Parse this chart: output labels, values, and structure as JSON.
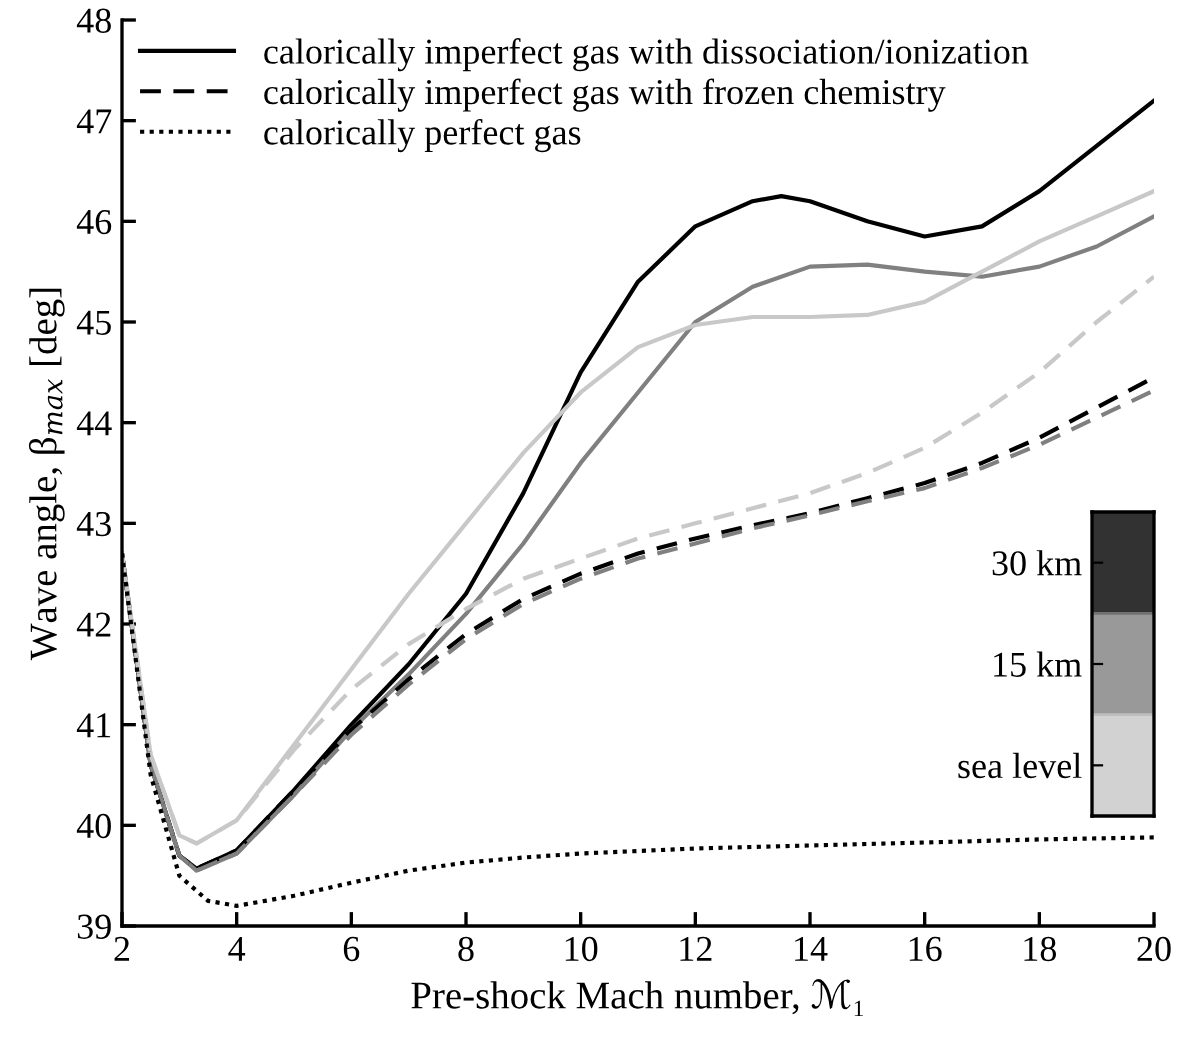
{
  "chart_data": {
    "type": "line",
    "xlabel": "Pre-shock Mach number, ℳ₁",
    "ylabel": "Wave angle, β$_{max}$ [deg]",
    "xlim": [
      2,
      20
    ],
    "ylim": [
      39,
      48
    ],
    "xticks": [
      2,
      4,
      6,
      8,
      10,
      12,
      14,
      16,
      18,
      20
    ],
    "yticks": [
      39,
      40,
      41,
      42,
      43,
      44,
      45,
      46,
      47,
      48
    ],
    "grid": false,
    "legend": "top left",
    "marker": "none",
    "annotations": [
      "30 km",
      "15 km",
      "sea level"
    ],
    "series": [
      {
        "name": "calorically imperfect gas with dissociation/ionization",
        "color": "#000000",
        "line_style": "solid",
        "x": [
          2,
          2.5,
          3,
          3.3,
          4,
          5,
          6,
          7,
          8,
          9,
          10,
          11,
          12,
          13,
          13.5,
          14,
          15,
          16,
          17,
          18,
          19,
          20
        ],
        "values": [
          42.7,
          40.6,
          39.7,
          39.57,
          39.75,
          40.35,
          41.0,
          41.6,
          42.3,
          43.3,
          44.5,
          45.4,
          45.95,
          46.2,
          46.25,
          46.2,
          46.0,
          45.85,
          45.95,
          46.3,
          46.75,
          47.2
        ]
      },
      {
        "color": "#808080",
        "line_style": "solid",
        "x": [
          2,
          2.5,
          3,
          3.3,
          4,
          5,
          6,
          7,
          8,
          9,
          10,
          11,
          12,
          13,
          14,
          15,
          16,
          17,
          18,
          19,
          20
        ],
        "values": [
          42.7,
          40.6,
          39.7,
          39.55,
          39.72,
          40.3,
          40.95,
          41.5,
          42.1,
          42.8,
          43.6,
          44.3,
          45.0,
          45.35,
          45.55,
          45.57,
          45.5,
          45.45,
          45.55,
          45.75,
          46.05
        ]
      },
      {
        "color": "#c8c8c8",
        "line_style": "solid",
        "x": [
          2,
          2.5,
          3,
          3.3,
          4,
          5,
          6,
          7,
          8,
          9,
          10,
          11,
          12,
          13,
          14,
          15,
          16,
          17,
          18,
          19,
          20
        ],
        "values": [
          42.7,
          40.7,
          39.9,
          39.82,
          40.05,
          40.8,
          41.55,
          42.3,
          43.0,
          43.7,
          44.3,
          44.75,
          44.97,
          45.05,
          45.05,
          45.07,
          45.2,
          45.5,
          45.8,
          46.05,
          46.3
        ]
      },
      {
        "name": "calorically imperfect gas with frozen chemistry",
        "color": "#000000",
        "line_style": "dashed",
        "x": [
          2,
          2.5,
          3,
          3.3,
          4,
          5,
          6,
          7,
          8,
          9,
          10,
          11,
          12,
          13,
          14,
          15,
          16,
          17,
          18,
          19,
          20
        ],
        "values": [
          42.7,
          40.6,
          39.7,
          39.57,
          39.75,
          40.35,
          40.95,
          41.45,
          41.9,
          42.25,
          42.5,
          42.7,
          42.85,
          42.98,
          43.1,
          43.25,
          43.4,
          43.6,
          43.85,
          44.15,
          44.45
        ]
      },
      {
        "color": "#808080",
        "line_style": "dashed",
        "x": [
          2,
          2.5,
          3,
          3.3,
          4,
          5,
          6,
          7,
          8,
          9,
          10,
          11,
          12,
          13,
          14,
          15,
          16,
          17,
          18,
          19,
          20
        ],
        "values": [
          42.7,
          40.6,
          39.7,
          39.55,
          39.72,
          40.3,
          40.9,
          41.4,
          41.85,
          42.2,
          42.45,
          42.65,
          42.8,
          42.95,
          43.08,
          43.22,
          43.35,
          43.55,
          43.78,
          44.05,
          44.32
        ]
      },
      {
        "color": "#c8c8c8",
        "line_style": "dashed",
        "x": [
          2,
          2.5,
          3,
          3.3,
          4,
          5,
          6,
          7,
          8,
          9,
          10,
          11,
          12,
          13,
          14,
          15,
          16,
          17,
          18,
          19,
          20
        ],
        "values": [
          42.7,
          40.7,
          39.9,
          39.82,
          40.05,
          40.75,
          41.35,
          41.8,
          42.15,
          42.45,
          42.65,
          42.85,
          43.0,
          43.15,
          43.3,
          43.5,
          43.75,
          44.1,
          44.5,
          45.0,
          45.45
        ]
      },
      {
        "name": "calorically perfect gas",
        "color": "#000000",
        "line_style": "dotted",
        "x": [
          2,
          2.5,
          3,
          3.5,
          4,
          5,
          6,
          7,
          8,
          9,
          10,
          12,
          14,
          16,
          18,
          20
        ],
        "values": [
          42.7,
          40.5,
          39.5,
          39.25,
          39.2,
          39.3,
          39.43,
          39.55,
          39.63,
          39.68,
          39.72,
          39.77,
          39.8,
          39.83,
          39.86,
          39.88
        ]
      }
    ]
  }
}
